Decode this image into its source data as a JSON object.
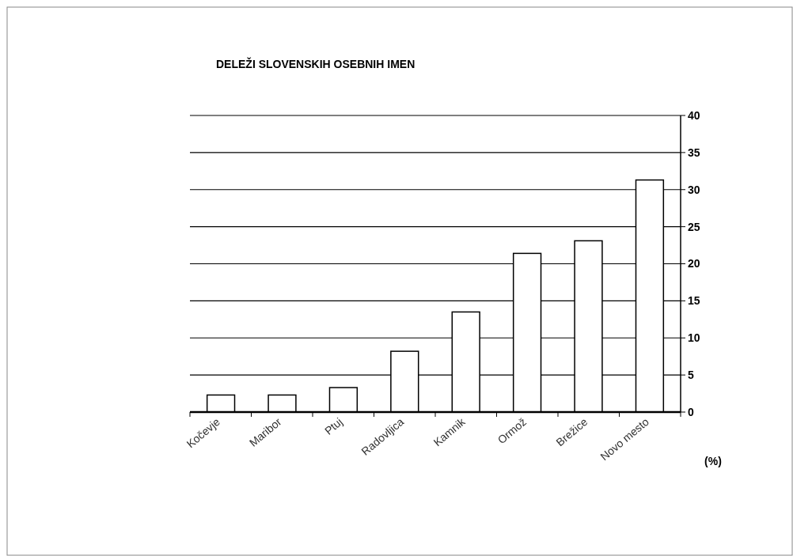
{
  "chart_data": {
    "type": "bar",
    "title": "DELEŽI SLOVENSKIH OSEBNIH IMEN",
    "ylabel": "(%)",
    "categories": [
      "Kočevje",
      "Maribor",
      "Ptuj",
      "Radovljica",
      "Kamnik",
      "Ormož",
      "Brežice",
      "Novo mesto"
    ],
    "values": [
      2.3,
      2.3,
      3.3,
      8.2,
      13.5,
      21.4,
      23.1,
      31.3
    ],
    "color": "#ffffff",
    "ylim": [
      0,
      40
    ],
    "yticks": [
      0,
      5,
      10,
      15,
      20,
      25,
      30,
      35,
      40
    ],
    "grid": "y"
  }
}
